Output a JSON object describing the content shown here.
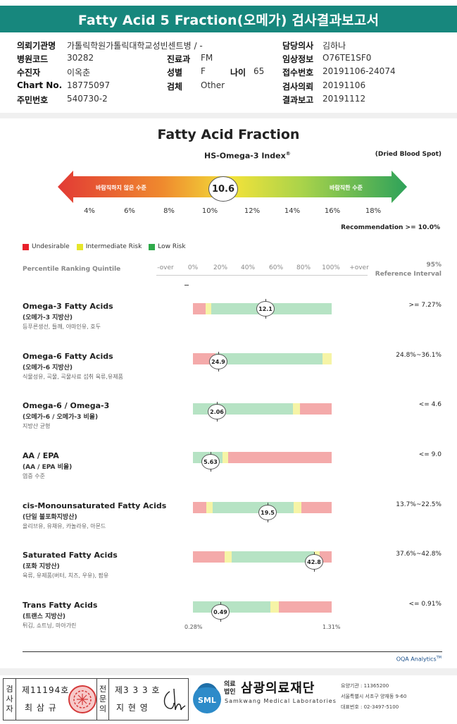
{
  "report_title": "Fatty Acid 5 Fraction(오메가) 검사결과보고서",
  "info": {
    "institution_label": "의뢰기관명",
    "institution": "가톨릭학원가톨릭대학교성빈센트병 / -",
    "hospital_code_label": "병원코드",
    "hospital_code": "30282",
    "dept_label": "진료과",
    "dept": "FM",
    "patient_label": "수진자",
    "patient": "이옥춘",
    "sex_label": "성별",
    "sex": "F",
    "age_label": "나이",
    "age": "65",
    "chart_label": "Chart No.",
    "chart": "18775097",
    "specimen_label": "검체",
    "specimen": "Other",
    "rrn_label": "주민번호",
    "rrn": "540730-2",
    "doctor_label": "담당의사",
    "doctor": "김하나",
    "clinical_label": "임상정보",
    "clinical": "O76TE1SF0",
    "receipt_label": "접수번호",
    "receipt": "20191106-24074",
    "req_label": "검사의뢰",
    "req": "20191106",
    "report_label": "결과보고",
    "report": "20191112"
  },
  "chart_title": "Fatty Acid Fraction",
  "index_title": "HS-Omega-3 Index",
  "index_mark": "®",
  "sample_type": "(Dried Blood Spot)",
  "gauge": {
    "left_label": "바람직하지 않은 수준",
    "right_label": "바람직한 수준",
    "value": "10.6",
    "ticks": [
      "4%",
      "6%",
      "8%",
      "10%",
      "12%",
      "14%",
      "16%",
      "18%"
    ],
    "recommendation": "Recommendation  >= 10.0%"
  },
  "legend": [
    {
      "label": "Undesirable",
      "color": "#e8202a"
    },
    {
      "label": "Intermediate Risk",
      "color": "#e6e62a"
    },
    {
      "label": "Low Risk",
      "color": "#2eaa4a"
    }
  ],
  "percentile": {
    "label": "Percentile Ranking Quintile",
    "ticks": [
      "-over",
      "0%",
      "20%",
      "40%",
      "60%",
      "80%",
      "100%",
      "+over"
    ],
    "ref_line1": "95%",
    "ref_line2": "Reference Interval"
  },
  "colors": {
    "red": "#f4aaaa",
    "yellow": "#f6f4a6",
    "green": "#b6e3c4"
  },
  "rows": [
    {
      "name": "Omega-3 Fatty Acids",
      "sub": "(오메가-3 지방산)",
      "food": "등푸른생선, 들깨, 아마인유, 호두",
      "ref": ">= 7.27%",
      "value": "12.1"
    },
    {
      "name": "Omega-6 Fatty Acids",
      "sub": "(오메가-6 지방산)",
      "food": "식물성유, 곡물, 곡물사료 섭취 육류,유제품",
      "ref": "24.8%~36.1%",
      "value": "24.9"
    },
    {
      "name": "Omega-6 / Omega-3",
      "sub": "(오메가-6 / 오메가-3 비율)",
      "food": "지방산 균형",
      "ref": "<= 4.6",
      "value": "2.06"
    },
    {
      "name": "AA / EPA",
      "sub": "(AA / EPA 비율)",
      "food": "염증 수준",
      "ref": "<= 9.0",
      "value": "5.63"
    },
    {
      "name": "cis-Monounsaturated Fatty Acids",
      "sub": "(단일 불포화지방산)",
      "food": "올리브유, 유채유, 카놀라유, 아몬드",
      "ref": "13.7%~22.5%",
      "value": "19.5"
    },
    {
      "name": "Saturated Fatty Acids",
      "sub": "(포화 지방산)",
      "food": "육류, 유제품(버터, 치즈, 우유), 팜유",
      "ref": "37.6%~42.8%",
      "value": "42.8"
    },
    {
      "name": "Trans Fatty Acids",
      "sub": "(트랜스 지방산)",
      "food": "튀김, 쇼트닝, 마아가린",
      "ref": "<= 0.91%",
      "value": "0.49"
    }
  ],
  "trans_range": {
    "low": "0.28%",
    "high": "1.31%"
  },
  "analytics": "OQA Analytics",
  "analytics_mark": "TM",
  "footer": {
    "tester_role": [
      "검",
      "사",
      "자"
    ],
    "tester_no": "제11194호",
    "tester_name": "최 삼 규",
    "specialist_role": [
      "전",
      "문",
      "의"
    ],
    "specialist_no": "제3 3 3 호",
    "specialist_name": "지 현 영",
    "org_tag": [
      "의료",
      "법인"
    ],
    "org_name": "삼광의료재단",
    "org_en": "Samkwang Medical Laboratories",
    "org_code": "요양기관 : 11365200",
    "org_addr": "서울특별시 서초구 양재동 9-60",
    "org_tel": "대표번호 : 02-3497-5100"
  }
}
